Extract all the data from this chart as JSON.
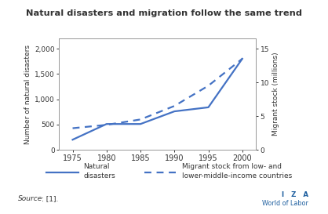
{
  "title": "Natural disasters and migration follow the same trend",
  "x": [
    1975,
    1980,
    1985,
    1990,
    1995,
    2000
  ],
  "natural_disasters": [
    200,
    510,
    510,
    760,
    840,
    1800
  ],
  "migrant_stock": [
    3.2,
    3.7,
    4.5,
    6.5,
    9.5,
    13.5
  ],
  "line_color": "#4472C4",
  "left_ylabel": "Number of natural disasters",
  "right_ylabel": "Migrant stock (millions)",
  "xlim": [
    1973,
    2002
  ],
  "left_ylim": [
    0,
    2200
  ],
  "right_ylim": [
    0,
    16.5
  ],
  "left_yticks": [
    0,
    500,
    1000,
    1500,
    2000
  ],
  "right_yticks": [
    0,
    5,
    10,
    15
  ],
  "xticks": [
    1975,
    1980,
    1985,
    1990,
    1995,
    2000
  ],
  "legend_line1": "Natural\ndisasters",
  "legend_line2": "Migrant stock from low- and\nlower-middle-income countries",
  "source_text": "Source: [1].",
  "bg_color": "#ffffff",
  "border_color": "#8ab4d4",
  "font_color": "#333333"
}
